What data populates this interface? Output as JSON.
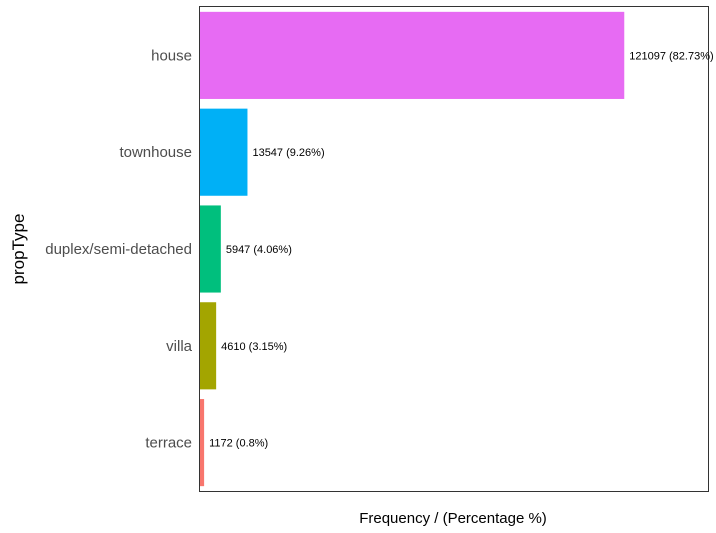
{
  "chart_data": {
    "type": "bar",
    "orientation": "horizontal",
    "categories": [
      "house",
      "townhouse",
      "duplex/semi-detached",
      "villa",
      "terrace"
    ],
    "values": [
      121097,
      13547,
      5947,
      4610,
      1172
    ],
    "labels": [
      "121097 (82.73%)",
      "13547 (9.26%)",
      "5947 (4.06%)",
      "4610 (3.15%)",
      "1172 (0.8%)"
    ],
    "colors": [
      "#E76BF3",
      "#00B0F6",
      "#00BF7D",
      "#A3A500",
      "#F8766D"
    ],
    "xlabel": "Frequency / (Percentage %)",
    "ylabel": "propType",
    "xlim": [
      0,
      145000
    ],
    "grid": false,
    "legend": "none"
  }
}
